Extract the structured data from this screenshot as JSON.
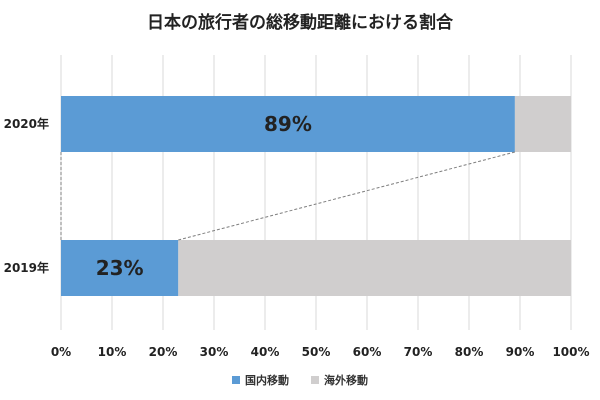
{
  "chart_data": {
    "type": "bar",
    "orientation": "horizontal",
    "stacked": true,
    "title": "日本の旅行者の総移動距離における割合",
    "categories": [
      "2020年",
      "2019年"
    ],
    "x_ticks": [
      "0%",
      "10%",
      "20%",
      "30%",
      "40%",
      "50%",
      "60%",
      "70%",
      "80%",
      "90%",
      "100%"
    ],
    "xlim": [
      0,
      100
    ],
    "grid": true,
    "legend_position": "bottom",
    "series": [
      {
        "name": "国内移動",
        "values": [
          89,
          23
        ],
        "labels": [
          "89%",
          "23%"
        ],
        "color": "#5b9bd5"
      },
      {
        "name": "海外移動",
        "values": [
          11,
          77
        ],
        "color": "#d0cece"
      }
    ],
    "connector_lines": true
  }
}
